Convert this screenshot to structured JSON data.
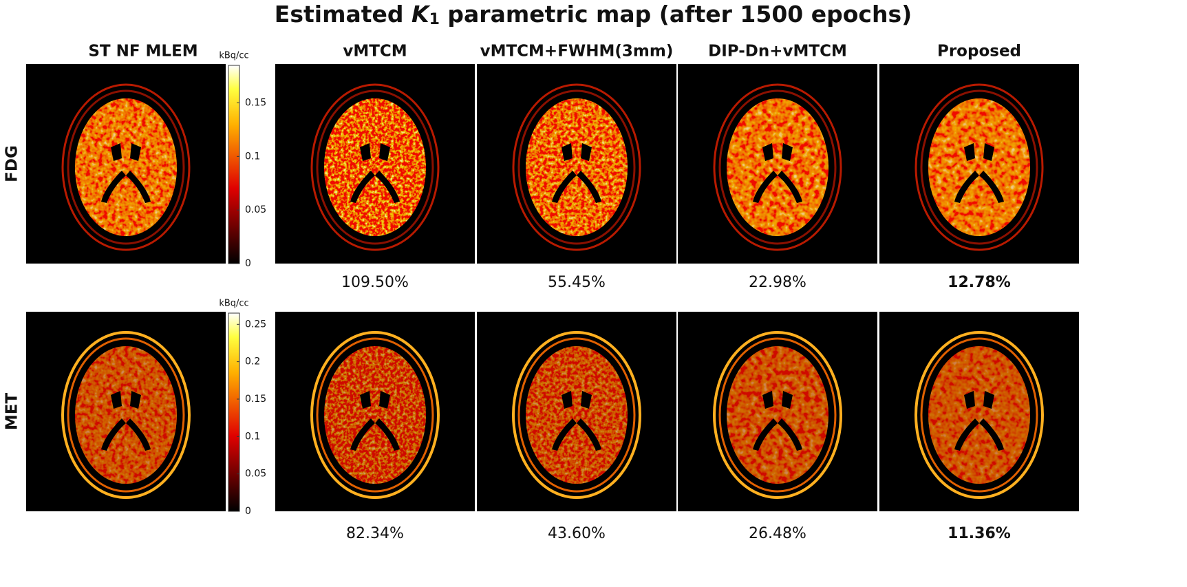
{
  "title": {
    "before": "Estimated",
    "symbol": "K",
    "subscript": "1",
    "after": "parametric map (after 1500 epochs)"
  },
  "columns": [
    "ST NF MLEM",
    "vMTCM",
    "vMTCM+FWHM(3mm)",
    "DIP-Dn+vMTCM",
    "Proposed"
  ],
  "rows": [
    {
      "label": "FDG",
      "colorbar": {
        "unit": "kBq/cc",
        "lim": [
          0,
          0.185
        ],
        "ticks": [
          0,
          0.05,
          0.1,
          0.15
        ]
      },
      "errors": [
        "109.50%",
        "55.45%",
        "22.98%",
        "12.78%"
      ]
    },
    {
      "label": "MET",
      "colorbar": {
        "unit": "kBq/cc",
        "lim": [
          0,
          0.265
        ],
        "ticks": [
          0,
          0.05,
          0.1,
          0.15,
          0.2,
          0.25
        ]
      },
      "errors": [
        "82.34%",
        "43.60%",
        "26.48%",
        "11.36%"
      ]
    }
  ]
}
